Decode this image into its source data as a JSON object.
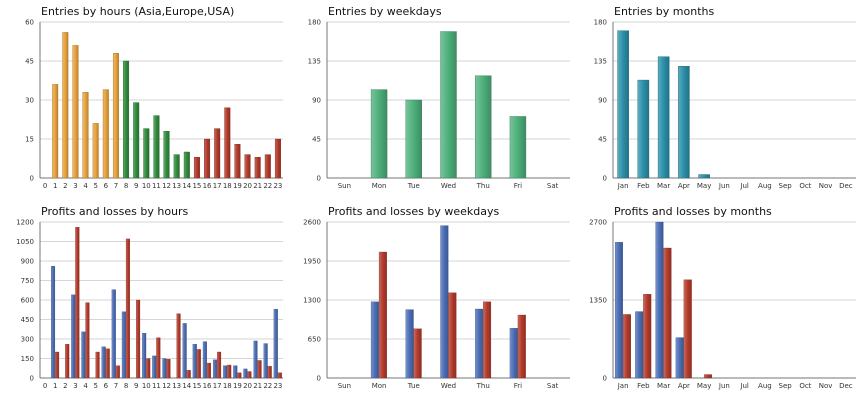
{
  "colors": {
    "orange": "#e8a23a",
    "green": "#2e8b3a",
    "red": "#b33a2a",
    "blue": "#4a6db5",
    "sea_green": "#4caf7a",
    "teal": "#2a8fa8",
    "grid": "#c8c8c8",
    "axis": "#555555"
  },
  "chart_data": [
    {
      "type": "bar",
      "title": "Entries by hours (Asia,Europe,USA)",
      "categories": [
        "0",
        "1",
        "2",
        "3",
        "4",
        "5",
        "6",
        "7",
        "8",
        "9",
        "10",
        "11",
        "12",
        "13",
        "14",
        "15",
        "16",
        "17",
        "18",
        "19",
        "20",
        "21",
        "22",
        "23"
      ],
      "values": [
        0,
        36,
        56,
        51,
        33,
        21,
        34,
        48,
        45,
        29,
        19,
        24,
        18,
        9,
        10,
        8,
        15,
        19,
        27,
        13,
        9,
        8,
        9,
        15
      ],
      "bar_colors": [
        "orange",
        "orange",
        "orange",
        "orange",
        "orange",
        "orange",
        "orange",
        "orange",
        "green",
        "green",
        "green",
        "green",
        "green",
        "green",
        "green",
        "red",
        "red",
        "red",
        "red",
        "red",
        "red",
        "red",
        "red",
        "red"
      ],
      "yticks": [
        "0",
        "15",
        "30",
        "45",
        "60"
      ],
      "ylim": [
        0,
        60
      ]
    },
    {
      "type": "bar",
      "title": "Entries by weekdays",
      "categories": [
        "Sun",
        "Mon",
        "Tue",
        "Wed",
        "Thu",
        "Fri",
        "Sat"
      ],
      "values": [
        0,
        102,
        90,
        169,
        118,
        71,
        0
      ],
      "bar_colors": [
        "sea_green",
        "sea_green",
        "sea_green",
        "sea_green",
        "sea_green",
        "sea_green",
        "sea_green"
      ],
      "yticks": [
        "0",
        "45",
        "90",
        "135",
        "180"
      ],
      "ylim": [
        0,
        180
      ]
    },
    {
      "type": "bar",
      "title": "Entries by months",
      "categories": [
        "Jan",
        "Feb",
        "Mar",
        "Apr",
        "May",
        "Jun",
        "Jul",
        "Aug",
        "Sep",
        "Oct",
        "Nov",
        "Dec"
      ],
      "values": [
        170,
        113,
        140,
        129,
        4,
        0,
        0,
        0,
        0,
        0,
        0,
        0
      ],
      "bar_colors": [
        "teal",
        "teal",
        "teal",
        "teal",
        "teal",
        "teal",
        "teal",
        "teal",
        "teal",
        "teal",
        "teal",
        "teal"
      ],
      "yticks": [
        "0",
        "45",
        "90",
        "135",
        "180"
      ],
      "ylim": [
        0,
        180
      ]
    },
    {
      "type": "bar",
      "title": "Profits and losses by hours",
      "categories": [
        "0",
        "1",
        "2",
        "3",
        "4",
        "5",
        "6",
        "7",
        "8",
        "9",
        "10",
        "11",
        "12",
        "13",
        "14",
        "15",
        "16",
        "17",
        "18",
        "19",
        "20",
        "21",
        "22",
        "23"
      ],
      "series": [
        {
          "color": "blue",
          "values": [
            0,
            860,
            0,
            640,
            355,
            0,
            240,
            680,
            510,
            0,
            345,
            170,
            150,
            0,
            420,
            260,
            280,
            140,
            95,
            95,
            70,
            285,
            265,
            530
          ]
        },
        {
          "color": "red",
          "values": [
            0,
            200,
            260,
            1160,
            580,
            200,
            225,
            95,
            1070,
            600,
            150,
            310,
            145,
            495,
            60,
            220,
            115,
            200,
            100,
            40,
            50,
            135,
            90,
            40
          ]
        }
      ],
      "yticks": [
        "0",
        "150",
        "300",
        "450",
        "600",
        "750",
        "900",
        "1050",
        "1200"
      ],
      "ylim": [
        0,
        1200
      ]
    },
    {
      "type": "bar",
      "title": "Profits and losses by weekdays",
      "categories": [
        "Sun",
        "Mon",
        "Tue",
        "Wed",
        "Thu",
        "Fri",
        "Sat"
      ],
      "series": [
        {
          "color": "blue",
          "values": [
            0,
            1270,
            1140,
            2540,
            1150,
            830,
            0
          ]
        },
        {
          "color": "red",
          "values": [
            0,
            2100,
            820,
            1420,
            1270,
            1050,
            0
          ]
        }
      ],
      "yticks": [
        "0",
        "650",
        "1300",
        "1950",
        "2600"
      ],
      "ylim": [
        0,
        2600
      ]
    },
    {
      "type": "bar",
      "title": "Profits and losses by months",
      "categories": [
        "Jan",
        "Feb",
        "Mar",
        "Apr",
        "May",
        "Jun",
        "Jul",
        "Aug",
        "Sep",
        "Oct",
        "Nov",
        "Dec"
      ],
      "series": [
        {
          "color": "blue",
          "values": [
            2350,
            1150,
            2700,
            700,
            0,
            0,
            0,
            0,
            0,
            0,
            0,
            0
          ]
        },
        {
          "color": "red",
          "values": [
            1100,
            1450,
            2250,
            1700,
            60,
            0,
            0,
            0,
            0,
            0,
            0,
            0
          ]
        }
      ],
      "yticks": [
        "0",
        "1350",
        "2700"
      ],
      "ylim": [
        0,
        2700
      ]
    }
  ]
}
